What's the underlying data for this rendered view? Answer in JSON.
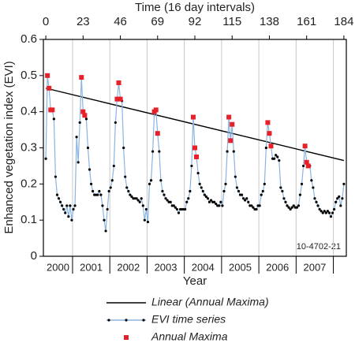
{
  "chart_data": {
    "type": "line",
    "title": "Time (16 day intervals)",
    "y_label": "Enhanced vegetation index (EVI)",
    "x_label": "Year",
    "annotation": "10-4702-21",
    "xlim": [
      -1.5,
      185.5
    ],
    "xticks": [
      0,
      23,
      46,
      69,
      92,
      115,
      138,
      161,
      184
    ],
    "ylim": [
      0,
      0.6
    ],
    "yticks": [
      0,
      0.1,
      0.2,
      0.3,
      0.4,
      0.5,
      0.6
    ],
    "year_labels": [
      "2000",
      "2001",
      "2002",
      "2003",
      "2004",
      "2005",
      "2006",
      "2007"
    ],
    "year_bounds": [
      16.5,
      39.5,
      62.5,
      85.5,
      108.5,
      131.5,
      154.5,
      177.5
    ],
    "grid": true,
    "series": [
      {
        "name": "Linear (Annual Maxima)",
        "style": "line",
        "color": "#000000",
        "x": [
          0,
          184
        ],
        "values": [
          0.465,
          0.265
        ]
      },
      {
        "name": "EVI time series",
        "style": "line-markers",
        "color": "#8ab4e0",
        "marker_color": "#000000",
        "x": [
          0,
          1,
          2,
          3,
          4,
          5,
          6,
          7,
          8,
          9,
          10,
          11,
          12,
          13,
          14,
          15,
          16,
          17,
          18,
          19,
          20,
          21,
          22,
          23,
          24,
          25,
          26,
          27,
          28,
          29,
          30,
          31,
          32,
          33,
          34,
          35,
          36,
          37,
          38,
          39,
          40,
          41,
          42,
          43,
          44,
          45,
          46,
          47,
          48,
          49,
          50,
          51,
          52,
          53,
          54,
          55,
          56,
          57,
          58,
          59,
          60,
          61,
          62,
          63,
          64,
          65,
          66,
          67,
          68,
          69,
          70,
          71,
          72,
          73,
          74,
          75,
          76,
          77,
          78,
          79,
          80,
          81,
          82,
          83,
          84,
          85,
          86,
          87,
          88,
          89,
          90,
          91,
          92,
          93,
          94,
          95,
          96,
          97,
          98,
          99,
          100,
          101,
          102,
          103,
          104,
          105,
          106,
          107,
          108,
          109,
          110,
          111,
          112,
          113,
          114,
          115,
          116,
          117,
          118,
          119,
          120,
          121,
          122,
          123,
          124,
          125,
          126,
          127,
          128,
          129,
          130,
          131,
          132,
          133,
          134,
          135,
          136,
          137,
          138,
          139,
          140,
          141,
          142,
          143,
          144,
          145,
          146,
          147,
          148,
          149,
          150,
          151,
          152,
          153,
          154,
          155,
          156,
          157,
          158,
          159,
          160,
          161,
          162,
          163,
          164,
          165,
          166,
          167,
          168,
          169,
          170,
          171,
          172,
          173,
          174,
          175,
          176,
          177,
          178,
          179,
          180,
          181,
          182,
          183,
          184
        ],
        "values": [
          0.27,
          0.5,
          0.465,
          0.405,
          0.405,
          0.38,
          0.22,
          0.17,
          0.16,
          0.15,
          0.14,
          0.13,
          0.12,
          0.14,
          0.11,
          0.14,
          0.1,
          0.13,
          0.14,
          0.33,
          0.26,
          0.37,
          0.495,
          0.4,
          0.39,
          0.38,
          0.3,
          0.24,
          0.2,
          0.18,
          0.17,
          0.17,
          0.17,
          0.18,
          0.17,
          0.14,
          0.1,
          0.07,
          0.13,
          0.18,
          0.19,
          0.21,
          0.25,
          0.37,
          0.435,
          0.48,
          0.435,
          0.43,
          0.3,
          0.22,
          0.19,
          0.18,
          0.17,
          0.165,
          0.16,
          0.16,
          0.16,
          0.155,
          0.15,
          0.16,
          0.14,
          0.1,
          0.13,
          0.095,
          0.2,
          0.21,
          0.29,
          0.4,
          0.405,
          0.34,
          0.29,
          0.21,
          0.18,
          0.17,
          0.16,
          0.155,
          0.15,
          0.15,
          0.14,
          0.14,
          0.135,
          0.13,
          0.12,
          0.13,
          0.13,
          0.13,
          0.13,
          0.15,
          0.16,
          0.18,
          0.25,
          0.385,
          0.3,
          0.275,
          0.23,
          0.2,
          0.19,
          0.18,
          0.17,
          0.165,
          0.16,
          0.15,
          0.155,
          0.15,
          0.15,
          0.145,
          0.14,
          0.14,
          0.15,
          0.14,
          0.18,
          0.2,
          0.29,
          0.385,
          0.32,
          0.365,
          0.29,
          0.22,
          0.19,
          0.18,
          0.17,
          0.17,
          0.16,
          0.155,
          0.16,
          0.15,
          0.14,
          0.14,
          0.135,
          0.13,
          0.13,
          0.14,
          0.14,
          0.17,
          0.18,
          0.2,
          0.3,
          0.37,
          0.34,
          0.305,
          0.27,
          0.27,
          0.28,
          0.275,
          0.265,
          0.19,
          0.18,
          0.16,
          0.15,
          0.14,
          0.135,
          0.13,
          0.135,
          0.14,
          0.135,
          0.135,
          0.14,
          0.17,
          0.2,
          0.25,
          0.305,
          0.26,
          0.25,
          0.25,
          0.21,
          0.19,
          0.16,
          0.15,
          0.14,
          0.13,
          0.125,
          0.12,
          0.125,
          0.12,
          0.125,
          0.12,
          0.11,
          0.12,
          0.13,
          0.15,
          0.16,
          0.165,
          0.14,
          0.16,
          0.2
        ]
      },
      {
        "name": "Annual Maxima",
        "style": "markers",
        "color": "#e8202a",
        "x": [
          1,
          2,
          3,
          4,
          22,
          23,
          24,
          44,
          45,
          46,
          67,
          68,
          69,
          91,
          92,
          93,
          113,
          114,
          115,
          137,
          138,
          139,
          160,
          161,
          162
        ],
        "values": [
          0.5,
          0.465,
          0.405,
          0.405,
          0.495,
          0.4,
          0.39,
          0.435,
          0.48,
          0.435,
          0.4,
          0.405,
          0.34,
          0.385,
          0.3,
          0.275,
          0.385,
          0.32,
          0.365,
          0.37,
          0.34,
          0.305,
          0.305,
          0.26,
          0.25
        ]
      }
    ]
  }
}
